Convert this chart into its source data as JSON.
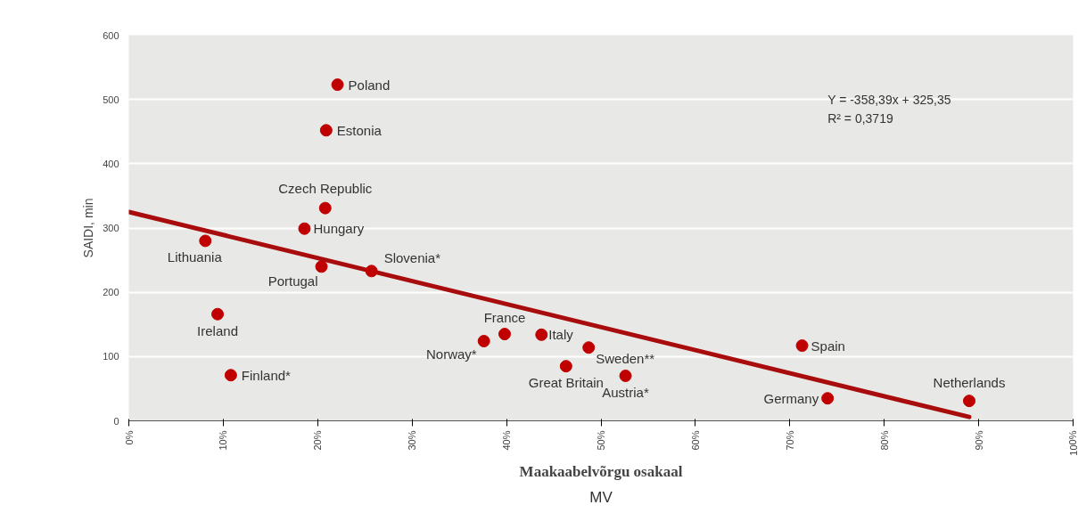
{
  "chart_data": {
    "type": "scatter",
    "xlabel": "Maakaabelvõrgu osakaal",
    "ylabel": "SAIDI, min",
    "xlim": [
      0,
      1
    ],
    "ylim": [
      0,
      600
    ],
    "xticks": [
      {
        "value": 0,
        "label": "0%"
      },
      {
        "value": 0.1,
        "label": "10%"
      },
      {
        "value": 0.2,
        "label": "20%"
      },
      {
        "value": 0.3,
        "label": "30%"
      },
      {
        "value": 0.4,
        "label": "40%"
      },
      {
        "value": 0.5,
        "label": "50%"
      },
      {
        "value": 0.6,
        "label": "60%"
      },
      {
        "value": 0.7,
        "label": "70%"
      },
      {
        "value": 0.8,
        "label": "80%"
      },
      {
        "value": 0.9,
        "label": "90%"
      },
      {
        "value": 1,
        "label": "100%"
      }
    ],
    "yticks": [
      0,
      100,
      200,
      300,
      400,
      500,
      600
    ],
    "grid": "y",
    "series": [
      {
        "marker": "circle",
        "color": "#c00000",
        "x": [
          0.221,
          0.209,
          0.208,
          0.186,
          0.081,
          0.204,
          0.257,
          0.094,
          0.108,
          0.376,
          0.398,
          0.437,
          0.487,
          0.463,
          0.526,
          0.713,
          0.74,
          0.89
        ],
        "values": [
          523,
          452,
          331,
          299,
          280,
          240,
          233,
          166,
          71,
          124,
          135,
          134,
          114,
          85,
          70,
          117,
          35,
          31
        ]
      },
      {
        "type": "line",
        "marker": "none",
        "color": "#a80c0c",
        "x": [
          0,
          0.89
        ],
        "values": [
          325,
          6
        ]
      }
    ],
    "annotations": [
      {
        "text": "Poland",
        "x": 0.221,
        "y": 523
      },
      {
        "text": "Estonia",
        "x": 0.209,
        "y": 452
      },
      {
        "text": "Czech Republic",
        "x": 0.208,
        "y": 331
      },
      {
        "text": "Hungary",
        "x": 0.186,
        "y": 299
      },
      {
        "text": "Lithuania",
        "x": 0.081,
        "y": 280
      },
      {
        "text": "Portugal",
        "x": 0.204,
        "y": 240
      },
      {
        "text": "Slovenia*",
        "x": 0.257,
        "y": 233
      },
      {
        "text": "Ireland",
        "x": 0.094,
        "y": 166
      },
      {
        "text": "Finland*",
        "x": 0.108,
        "y": 71
      },
      {
        "text": "Norway*",
        "x": 0.376,
        "y": 124
      },
      {
        "text": "France",
        "x": 0.398,
        "y": 135
      },
      {
        "text": "Italy",
        "x": 0.437,
        "y": 134
      },
      {
        "text": "Sweden**",
        "x": 0.487,
        "y": 114
      },
      {
        "text": "Great Britain",
        "x": 0.463,
        "y": 85
      },
      {
        "text": "Austria*",
        "x": 0.526,
        "y": 70
      },
      {
        "text": "Spain",
        "x": 0.713,
        "y": 117
      },
      {
        "text": "Germany",
        "x": 0.74,
        "y": 35
      },
      {
        "text": "Netherlands",
        "x": 0.89,
        "y": 31
      },
      "Y = -358,39x + 325,35",
      "R² = 0,3719",
      "MV"
    ]
  }
}
